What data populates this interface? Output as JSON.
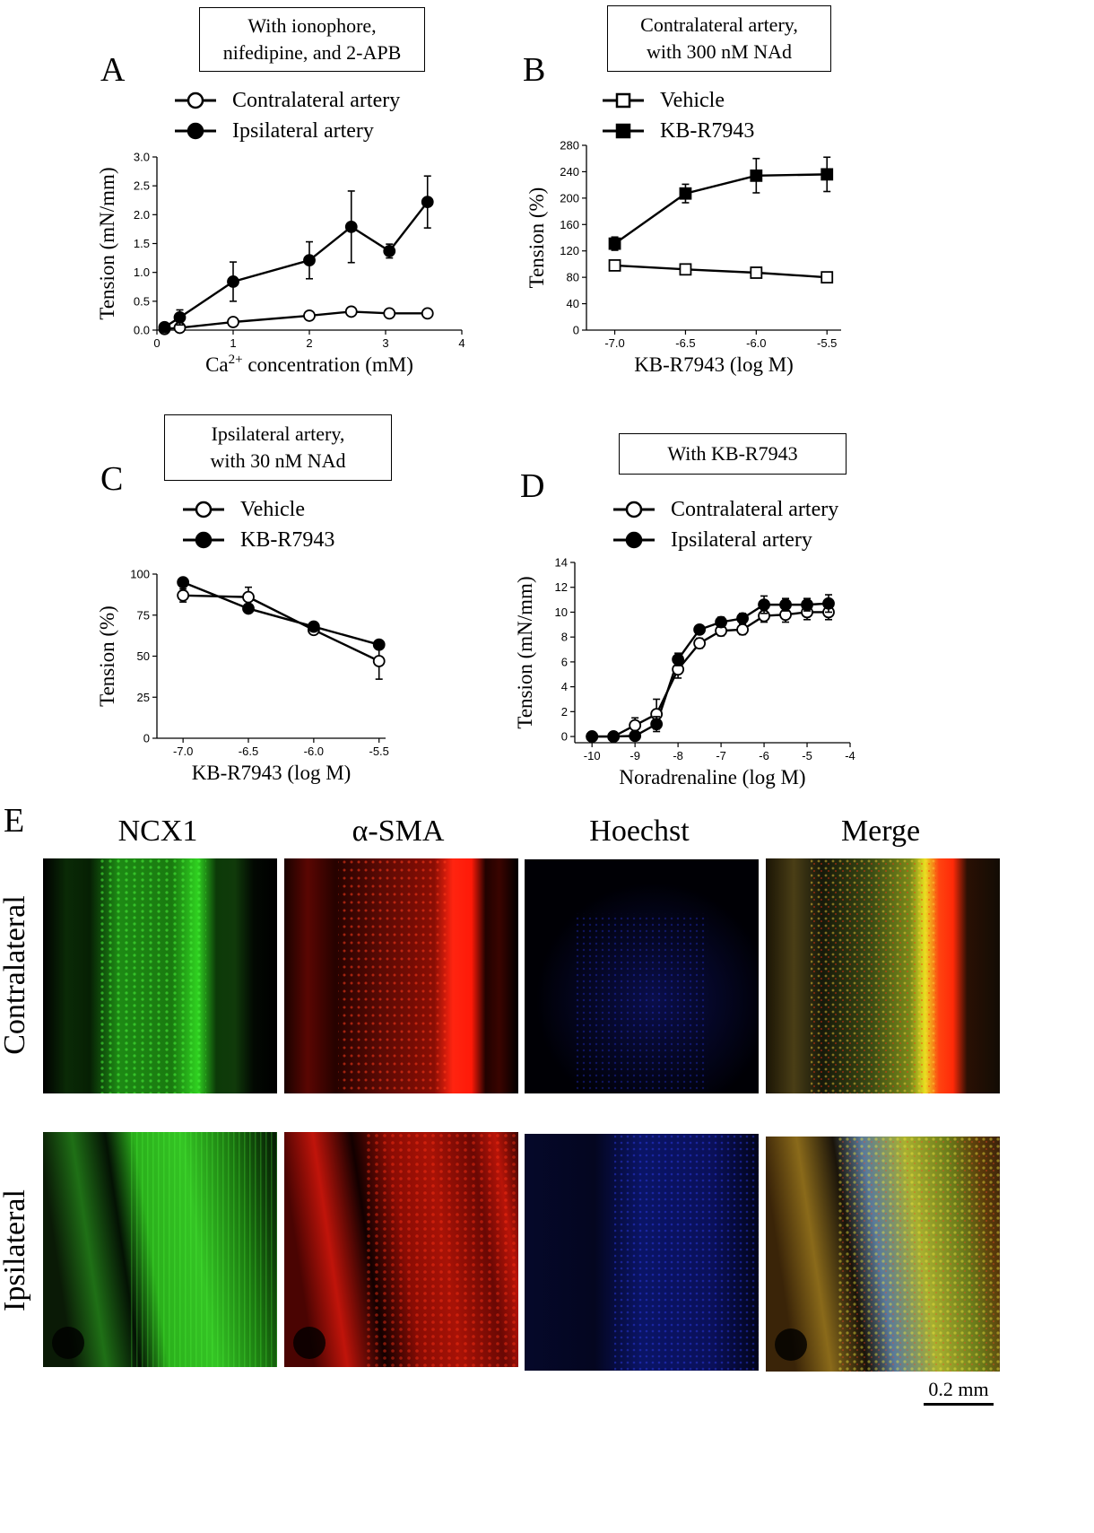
{
  "figure": {
    "E": {
      "letter": "E",
      "columns": [
        "NCX1",
        "α-SMA",
        "Hoechst",
        "Merge"
      ],
      "rows": [
        "Contralateral",
        "Ipsilateral"
      ],
      "scale_bar": "0.2 mm",
      "channel_colors": {
        "NCX1": "#2bd61a",
        "α-SMA": "#ff1a0a",
        "Hoechst": "#1a2cff"
      }
    }
  },
  "chart_data": [
    {
      "id": "A",
      "letter": "A",
      "type": "line",
      "condition": [
        "With ionophore,",
        "nifedipine, and 2-APB"
      ],
      "xlabel_parts": [
        "Ca",
        "2+",
        " concentration (mM)"
      ],
      "ylabel": "Tension (mN/mm)",
      "xlim": [
        0,
        4
      ],
      "ylim": [
        0,
        3.0
      ],
      "xticks": [
        "0",
        "1",
        "2",
        "3",
        "4"
      ],
      "xtick_values": [
        0,
        1,
        2,
        3,
        4
      ],
      "yticks": [
        "0.0",
        "0.5",
        "1.0",
        "1.5",
        "2.0",
        "2.5",
        "3.0"
      ],
      "ytick_values": [
        0,
        0.5,
        1,
        1.5,
        2,
        2.5,
        3
      ],
      "series": [
        {
          "name": "Contralateral artery",
          "marker": "circle",
          "fill": "open",
          "x": [
            0.1,
            0.3,
            1.0,
            2.0,
            2.55,
            3.05,
            3.55
          ],
          "y": [
            0.02,
            0.04,
            0.14,
            0.25,
            0.32,
            0.29,
            0.29
          ],
          "err": [
            0.03,
            0.03,
            0.03,
            0.04,
            0.03,
            0.03,
            0.03
          ]
        },
        {
          "name": "Ipsilateral artery",
          "marker": "circle",
          "fill": "filled",
          "x": [
            0.1,
            0.3,
            1.0,
            2.0,
            2.55,
            3.05,
            3.55
          ],
          "y": [
            0.05,
            0.22,
            0.84,
            1.21,
            1.79,
            1.37,
            2.22
          ],
          "err": [
            0.06,
            0.13,
            0.34,
            0.32,
            0.62,
            0.12,
            0.45
          ]
        }
      ]
    },
    {
      "id": "B",
      "letter": "B",
      "type": "line",
      "condition": [
        "Contralateral artery,",
        "with 300 nM NAd"
      ],
      "xlabel": "KB-R7943 (log M)",
      "ylabel": "Tension (%)",
      "xlim": [
        -7.2,
        -5.4
      ],
      "ylim": [
        0,
        280
      ],
      "xticks": [
        "-7.0",
        "-6.5",
        "-6.0",
        "-5.5"
      ],
      "xtick_values": [
        -7.0,
        -6.5,
        -6.0,
        -5.5
      ],
      "yticks": [
        "0",
        "40",
        "80",
        "120",
        "160",
        "200",
        "240",
        "280"
      ],
      "ytick_values": [
        0,
        40,
        80,
        120,
        160,
        200,
        240,
        280
      ],
      "series": [
        {
          "name": "Vehicle",
          "marker": "square",
          "fill": "open",
          "x": [
            -7.0,
            -6.5,
            -6.0,
            -5.5
          ],
          "y": [
            98,
            92,
            87,
            80
          ],
          "err": [
            3,
            3,
            3,
            3
          ]
        },
        {
          "name": "KB-R7943",
          "marker": "square",
          "fill": "filled",
          "x": [
            -7.0,
            -6.5,
            -6.0,
            -5.5
          ],
          "y": [
            131,
            207,
            234,
            236
          ],
          "err": [
            10,
            14,
            26,
            26
          ]
        }
      ]
    },
    {
      "id": "C",
      "letter": "C",
      "type": "line",
      "condition": [
        "Ipsilateral artery,",
        "with 30 nM NAd"
      ],
      "xlabel": "KB-R7943 (log M)",
      "ylabel": "Tension (%)",
      "xlim": [
        -7.2,
        -5.45
      ],
      "ylim": [
        0,
        100
      ],
      "xticks": [
        "-7.0",
        "-6.5",
        "-6.0",
        "-5.5"
      ],
      "xtick_values": [
        -7.0,
        -6.5,
        -6.0,
        -5.5
      ],
      "yticks": [
        "0",
        "25",
        "50",
        "75",
        "100"
      ],
      "ytick_values": [
        0,
        25,
        50,
        75,
        100
      ],
      "series": [
        {
          "name": "Vehicle",
          "marker": "circle",
          "fill": "open",
          "x": [
            -7.0,
            -6.5,
            -6.0,
            -5.5
          ],
          "y": [
            87,
            86,
            66,
            47
          ],
          "err": [
            4,
            6,
            2,
            11
          ]
        },
        {
          "name": "KB-R7943",
          "marker": "circle",
          "fill": "filled",
          "x": [
            -7.0,
            -6.5,
            -6.0,
            -5.5
          ],
          "y": [
            95,
            79,
            68,
            57
          ],
          "err": [
            2,
            2,
            2,
            2
          ]
        }
      ]
    },
    {
      "id": "D",
      "letter": "D",
      "type": "line",
      "condition": [
        "With KB-R7943"
      ],
      "xlabel": "Noradrenaline (log M)",
      "ylabel": "Tension (mN/mm)",
      "xlim": [
        -10.4,
        -4
      ],
      "ylim": [
        -0.5,
        14
      ],
      "xticks": [
        "-10",
        "-9",
        "-8",
        "-7",
        "-6",
        "-5",
        "-4"
      ],
      "xtick_values": [
        -10,
        -9,
        -8,
        -7,
        -6,
        -5,
        -4
      ],
      "yticks": [
        "0",
        "2",
        "4",
        "6",
        "8",
        "10",
        "12",
        "14"
      ],
      "ytick_values": [
        0,
        2,
        4,
        6,
        8,
        10,
        12,
        14
      ],
      "series": [
        {
          "name": "Contralateral artery",
          "marker": "circle",
          "fill": "open",
          "x": [
            -10,
            -9.5,
            -9,
            -8.5,
            -8,
            -7.5,
            -7,
            -6.5,
            -6,
            -5.5,
            -5,
            -4.5
          ],
          "y": [
            0.0,
            0.0,
            0.9,
            1.8,
            5.4,
            7.5,
            8.5,
            8.6,
            9.7,
            9.8,
            10.0,
            10.0
          ],
          "err": [
            0.2,
            0.2,
            0.6,
            1.2,
            0.7,
            0.4,
            0.4,
            0.4,
            0.5,
            0.6,
            0.6,
            0.6
          ]
        },
        {
          "name": "Ipsilateral artery",
          "marker": "circle",
          "fill": "filled",
          "x": [
            -10,
            -9.5,
            -9,
            -8.5,
            -8,
            -7.5,
            -7,
            -6.5,
            -6,
            -5.5,
            -5,
            -4.5
          ],
          "y": [
            0.0,
            0.0,
            0.05,
            1.0,
            6.2,
            8.6,
            9.2,
            9.5,
            10.6,
            10.6,
            10.6,
            10.7
          ],
          "err": [
            0.1,
            0.1,
            0.1,
            0.6,
            0.5,
            0.3,
            0.4,
            0.4,
            0.7,
            0.5,
            0.5,
            0.7
          ]
        }
      ]
    }
  ]
}
